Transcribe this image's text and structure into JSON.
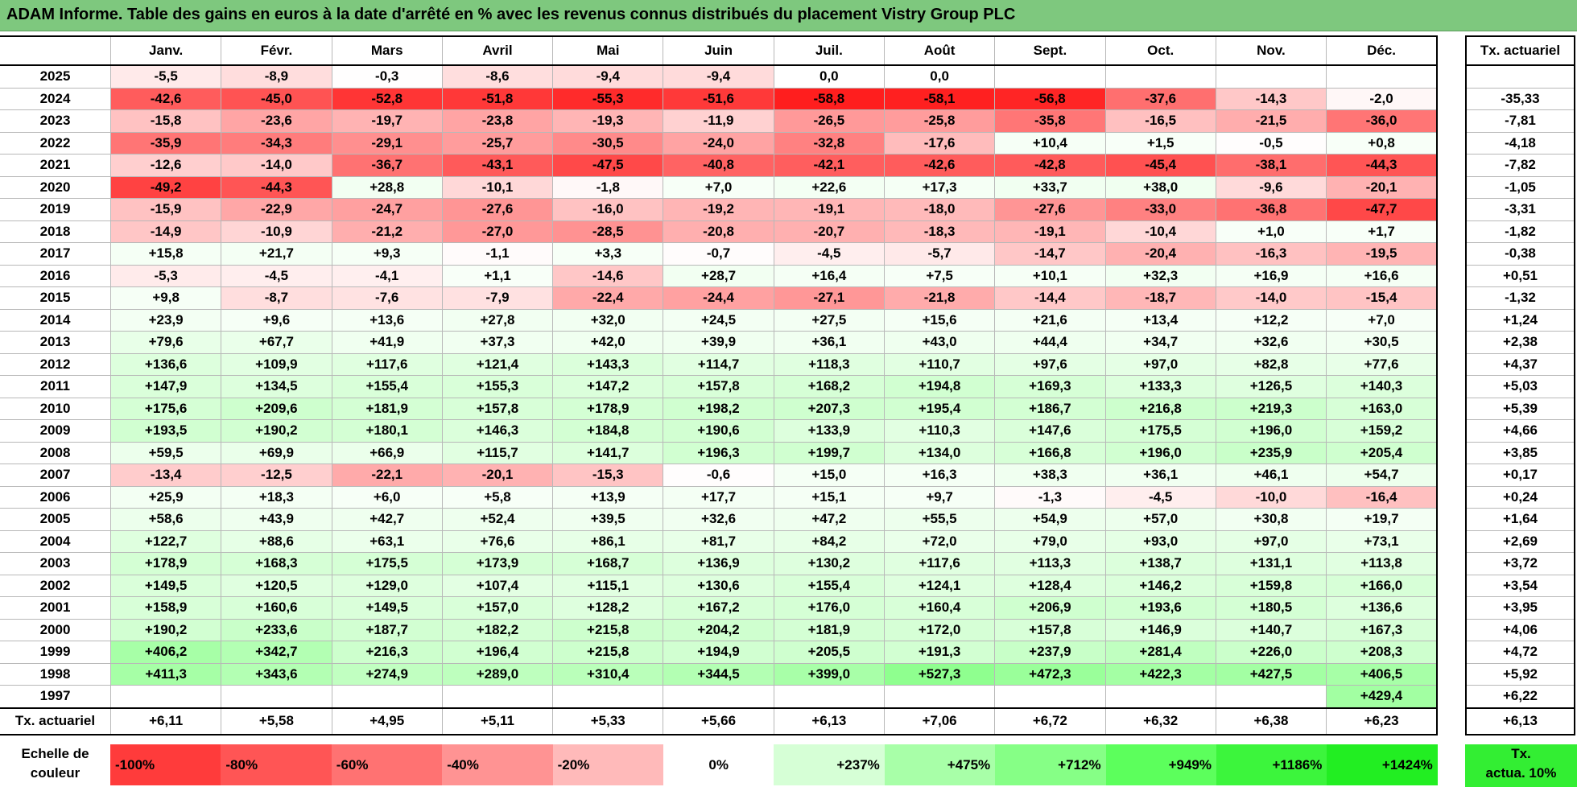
{
  "title": "ADAM Informe. Table des gains en euros à la date d'arrêté en % avec les revenus connus distribués du placement Vistry Group PLC",
  "months": [
    "Janv.",
    "Févr.",
    "Mars",
    "Avril",
    "Mai",
    "Juin",
    "Juil.",
    "Août",
    "Sept.",
    "Oct.",
    "Nov.",
    "Déc."
  ],
  "side_header": "Tx. actuariel",
  "rows": [
    {
      "year": "2025",
      "values": [
        "-5,5",
        "-8,9",
        "-0,3",
        "-8,6",
        "-9,4",
        "-9,4",
        "0,0",
        "0,0",
        "",
        "",
        "",
        ""
      ],
      "rate": ""
    },
    {
      "year": "2024",
      "values": [
        "-42,6",
        "-45,0",
        "-52,8",
        "-51,8",
        "-55,3",
        "-51,6",
        "-58,8",
        "-58,1",
        "-56,8",
        "-37,6",
        "-14,3",
        "-2,0"
      ],
      "rate": "-35,33"
    },
    {
      "year": "2023",
      "values": [
        "-15,8",
        "-23,6",
        "-19,7",
        "-23,8",
        "-19,3",
        "-11,9",
        "-26,5",
        "-25,8",
        "-35,8",
        "-16,5",
        "-21,5",
        "-36,0"
      ],
      "rate": "-7,81"
    },
    {
      "year": "2022",
      "values": [
        "-35,9",
        "-34,3",
        "-29,1",
        "-25,7",
        "-30,5",
        "-24,0",
        "-32,8",
        "-17,6",
        "+10,4",
        "+1,5",
        "-0,5",
        "+0,8"
      ],
      "rate": "-4,18"
    },
    {
      "year": "2021",
      "values": [
        "-12,6",
        "-14,0",
        "-36,7",
        "-43,1",
        "-47,5",
        "-40,8",
        "-42,1",
        "-42,6",
        "-42,8",
        "-45,4",
        "-38,1",
        "-44,3"
      ],
      "rate": "-7,82"
    },
    {
      "year": "2020",
      "values": [
        "-49,2",
        "-44,3",
        "+28,8",
        "-10,1",
        "-1,8",
        "+7,0",
        "+22,6",
        "+17,3",
        "+33,7",
        "+38,0",
        "-9,6",
        "-20,1"
      ],
      "rate": "-1,05"
    },
    {
      "year": "2019",
      "values": [
        "-15,9",
        "-22,9",
        "-24,7",
        "-27,6",
        "-16,0",
        "-19,2",
        "-19,1",
        "-18,0",
        "-27,6",
        "-33,0",
        "-36,8",
        "-47,7"
      ],
      "rate": "-3,31"
    },
    {
      "year": "2018",
      "values": [
        "-14,9",
        "-10,9",
        "-21,2",
        "-27,0",
        "-28,5",
        "-20,8",
        "-20,7",
        "-18,3",
        "-19,1",
        "-10,4",
        "+1,0",
        "+1,7"
      ],
      "rate": "-1,82"
    },
    {
      "year": "2017",
      "values": [
        "+15,8",
        "+21,7",
        "+9,3",
        "-1,1",
        "+3,3",
        "-0,7",
        "-4,5",
        "-5,7",
        "-14,7",
        "-20,4",
        "-16,3",
        "-19,5"
      ],
      "rate": "-0,38"
    },
    {
      "year": "2016",
      "values": [
        "-5,3",
        "-4,5",
        "-4,1",
        "+1,1",
        "-14,6",
        "+28,7",
        "+16,4",
        "+7,5",
        "+10,1",
        "+32,3",
        "+16,9",
        "+16,6"
      ],
      "rate": "+0,51"
    },
    {
      "year": "2015",
      "values": [
        "+9,8",
        "-8,7",
        "-7,6",
        "-7,9",
        "-22,4",
        "-24,4",
        "-27,1",
        "-21,8",
        "-14,4",
        "-18,7",
        "-14,0",
        "-15,4"
      ],
      "rate": "-1,32"
    },
    {
      "year": "2014",
      "values": [
        "+23,9",
        "+9,6",
        "+13,6",
        "+27,8",
        "+32,0",
        "+24,5",
        "+27,5",
        "+15,6",
        "+21,6",
        "+13,4",
        "+12,2",
        "+7,0"
      ],
      "rate": "+1,24"
    },
    {
      "year": "2013",
      "values": [
        "+79,6",
        "+67,7",
        "+41,9",
        "+37,3",
        "+42,0",
        "+39,9",
        "+36,1",
        "+43,0",
        "+44,4",
        "+34,7",
        "+32,6",
        "+30,5"
      ],
      "rate": "+2,38"
    },
    {
      "year": "2012",
      "values": [
        "+136,6",
        "+109,9",
        "+117,6",
        "+121,4",
        "+143,3",
        "+114,7",
        "+118,3",
        "+110,7",
        "+97,6",
        "+97,0",
        "+82,8",
        "+77,6"
      ],
      "rate": "+4,37"
    },
    {
      "year": "2011",
      "values": [
        "+147,9",
        "+134,5",
        "+155,4",
        "+155,3",
        "+147,2",
        "+157,8",
        "+168,2",
        "+194,8",
        "+169,3",
        "+133,3",
        "+126,5",
        "+140,3"
      ],
      "rate": "+5,03"
    },
    {
      "year": "2010",
      "values": [
        "+175,6",
        "+209,6",
        "+181,9",
        "+157,8",
        "+178,9",
        "+198,2",
        "+207,3",
        "+195,4",
        "+186,7",
        "+216,8",
        "+219,3",
        "+163,0"
      ],
      "rate": "+5,39"
    },
    {
      "year": "2009",
      "values": [
        "+193,5",
        "+190,2",
        "+180,1",
        "+146,3",
        "+184,8",
        "+190,6",
        "+133,9",
        "+110,3",
        "+147,6",
        "+175,5",
        "+196,0",
        "+159,2"
      ],
      "rate": "+4,66"
    },
    {
      "year": "2008",
      "values": [
        "+59,5",
        "+69,9",
        "+66,9",
        "+115,7",
        "+141,7",
        "+196,3",
        "+199,7",
        "+134,0",
        "+166,8",
        "+196,0",
        "+235,9",
        "+205,4"
      ],
      "rate": "+3,85"
    },
    {
      "year": "2007",
      "values": [
        "-13,4",
        "-12,5",
        "-22,1",
        "-20,1",
        "-15,3",
        "-0,6",
        "+15,0",
        "+16,3",
        "+38,3",
        "+36,1",
        "+46,1",
        "+54,7"
      ],
      "rate": "+0,17"
    },
    {
      "year": "2006",
      "values": [
        "+25,9",
        "+18,3",
        "+6,0",
        "+5,8",
        "+13,9",
        "+17,7",
        "+15,1",
        "+9,7",
        "-1,3",
        "-4,5",
        "-10,0",
        "-16,4"
      ],
      "rate": "+0,24"
    },
    {
      "year": "2005",
      "values": [
        "+58,6",
        "+43,9",
        "+42,7",
        "+52,4",
        "+39,5",
        "+32,6",
        "+47,2",
        "+55,5",
        "+54,9",
        "+57,0",
        "+30,8",
        "+19,7"
      ],
      "rate": "+1,64"
    },
    {
      "year": "2004",
      "values": [
        "+122,7",
        "+88,6",
        "+63,1",
        "+76,6",
        "+86,1",
        "+81,7",
        "+84,2",
        "+72,0",
        "+79,0",
        "+93,0",
        "+97,0",
        "+73,1"
      ],
      "rate": "+2,69"
    },
    {
      "year": "2003",
      "values": [
        "+178,9",
        "+168,3",
        "+175,5",
        "+173,9",
        "+168,7",
        "+136,9",
        "+130,2",
        "+117,6",
        "+113,3",
        "+138,7",
        "+131,1",
        "+113,8"
      ],
      "rate": "+3,72"
    },
    {
      "year": "2002",
      "values": [
        "+149,5",
        "+120,5",
        "+129,0",
        "+107,4",
        "+115,1",
        "+130,6",
        "+155,4",
        "+124,1",
        "+128,4",
        "+146,2",
        "+159,8",
        "+166,0"
      ],
      "rate": "+3,54"
    },
    {
      "year": "2001",
      "values": [
        "+158,9",
        "+160,6",
        "+149,5",
        "+157,0",
        "+128,2",
        "+167,2",
        "+176,0",
        "+160,4",
        "+206,9",
        "+193,6",
        "+180,5",
        "+136,6"
      ],
      "rate": "+3,95"
    },
    {
      "year": "2000",
      "values": [
        "+190,2",
        "+233,6",
        "+187,7",
        "+182,2",
        "+215,8",
        "+204,2",
        "+181,9",
        "+172,0",
        "+157,8",
        "+146,9",
        "+140,7",
        "+167,3"
      ],
      "rate": "+4,06"
    },
    {
      "year": "1999",
      "values": [
        "+406,2",
        "+342,7",
        "+216,3",
        "+196,4",
        "+215,8",
        "+194,9",
        "+205,5",
        "+191,3",
        "+237,9",
        "+281,4",
        "+226,0",
        "+208,3"
      ],
      "rate": "+4,72"
    },
    {
      "year": "1998",
      "values": [
        "+411,3",
        "+343,6",
        "+274,9",
        "+289,0",
        "+310,4",
        "+344,5",
        "+399,0",
        "+527,3",
        "+472,3",
        "+422,3",
        "+427,5",
        "+406,5"
      ],
      "rate": "+5,92"
    },
    {
      "year": "1997",
      "values": [
        "",
        "",
        "",
        "",
        "",
        "",
        "",
        "",
        "",
        "",
        "",
        "+429,4"
      ],
      "rate": "+6,22"
    }
  ],
  "summary": {
    "label": "Tx. actuariel",
    "values": [
      "+6,11",
      "+5,58",
      "+4,95",
      "+5,11",
      "+5,33",
      "+5,66",
      "+6,13",
      "+7,06",
      "+6,72",
      "+6,32",
      "+6,38",
      "+6,23"
    ],
    "rate": "+6,13"
  },
  "legend": {
    "label_line1": "Echelle de",
    "label_line2": "couleur",
    "swatches": [
      {
        "text": "-100%",
        "color": "#ff3b3b",
        "kind": "neg"
      },
      {
        "text": "-80%",
        "color": "#ff5555",
        "kind": "neg"
      },
      {
        "text": "-60%",
        "color": "#ff7272",
        "kind": "neg"
      },
      {
        "text": "-40%",
        "color": "#ff9393",
        "kind": "neg"
      },
      {
        "text": "-20%",
        "color": "#ffbaba",
        "kind": "neg"
      },
      {
        "text": "0%",
        "color": "#ffffff",
        "kind": "zero"
      },
      {
        "text": "+237%",
        "color": "#d6ffd6",
        "kind": "pos"
      },
      {
        "text": "+475%",
        "color": "#a8ffa8",
        "kind": "pos"
      },
      {
        "text": "+712%",
        "color": "#86ff86",
        "kind": "pos"
      },
      {
        "text": "+949%",
        "color": "#5cff5c",
        "kind": "pos"
      },
      {
        "text": "+1186%",
        "color": "#3cf53c",
        "kind": "pos"
      },
      {
        "text": "+1424%",
        "color": "#22ee22",
        "kind": "pos"
      }
    ],
    "badge_line1": "Tx.",
    "badge_line2": "actua. 10%",
    "badge_color": "#33ee33"
  }
}
